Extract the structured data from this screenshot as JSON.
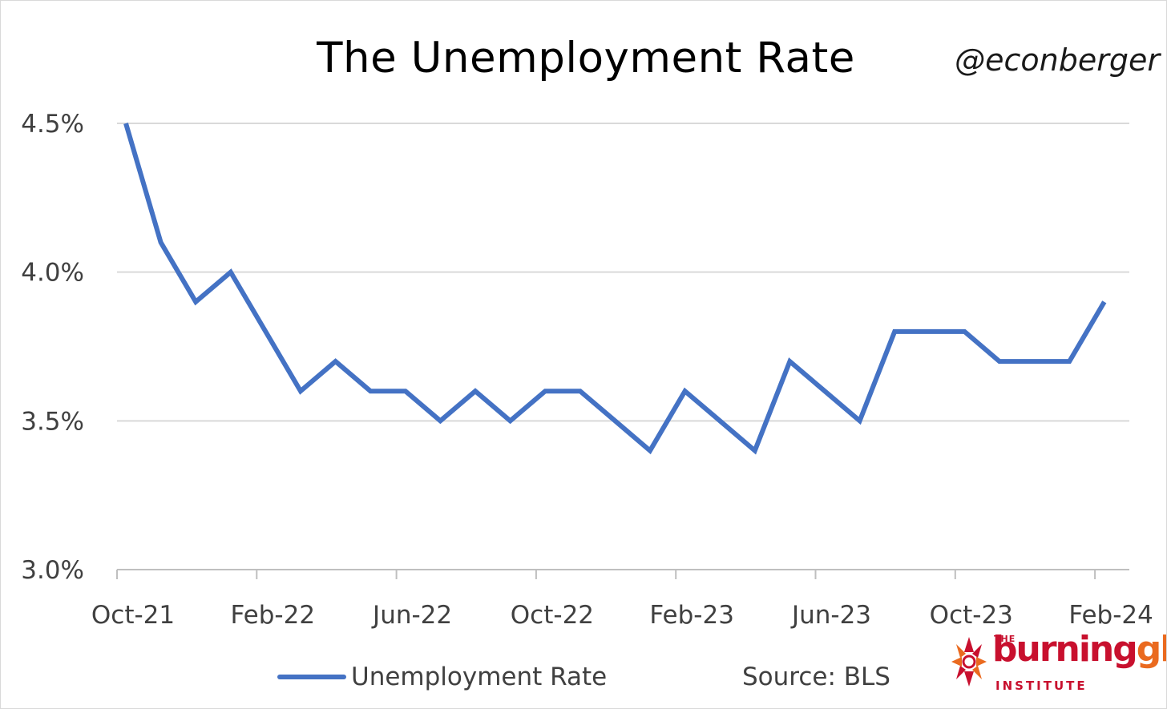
{
  "header": {
    "title": "The Unemployment Rate",
    "handle": "@econberger"
  },
  "footer": {
    "source": "Source: BLS"
  },
  "logo": {
    "the": "THE",
    "word_part1": "burning",
    "word_part2": "glass",
    "institute": "INSTITUTE",
    "colors": {
      "red": "#c8102e",
      "orange": "#ea6a1f"
    }
  },
  "chart_data": {
    "type": "line",
    "title": "The Unemployment Rate",
    "xlabel": "",
    "ylabel": "",
    "x": [
      "Oct-21",
      "Nov-21",
      "Dec-21",
      "Jan-22",
      "Feb-22",
      "Mar-22",
      "Apr-22",
      "May-22",
      "Jun-22",
      "Jul-22",
      "Aug-22",
      "Sep-22",
      "Oct-22",
      "Nov-22",
      "Dec-22",
      "Jan-23",
      "Feb-23",
      "Mar-23",
      "Apr-23",
      "May-23",
      "Jun-23",
      "Jul-23",
      "Aug-23",
      "Sep-23",
      "Oct-23",
      "Nov-23",
      "Dec-23",
      "Jan-24",
      "Feb-24"
    ],
    "x_tick_labels": [
      "Oct-21",
      "Feb-22",
      "Jun-22",
      "Oct-22",
      "Feb-23",
      "Jun-23",
      "Oct-23",
      "Feb-24"
    ],
    "y_tick_labels": [
      "3.0%",
      "3.5%",
      "4.0%",
      "4.5%"
    ],
    "y_ticks": [
      3.0,
      3.5,
      4.0,
      4.5
    ],
    "ylim": [
      3.0,
      4.5
    ],
    "grid": true,
    "legend_position": "bottom",
    "series": [
      {
        "name": "Unemployment Rate",
        "color": "#4472c4",
        "values": [
          4.5,
          4.1,
          3.9,
          4.0,
          3.8,
          3.6,
          3.7,
          3.6,
          3.6,
          3.5,
          3.6,
          3.5,
          3.6,
          3.6,
          3.5,
          3.4,
          3.6,
          3.5,
          3.4,
          3.7,
          3.6,
          3.5,
          3.8,
          3.8,
          3.8,
          3.7,
          3.7,
          3.7,
          3.9
        ]
      }
    ]
  }
}
